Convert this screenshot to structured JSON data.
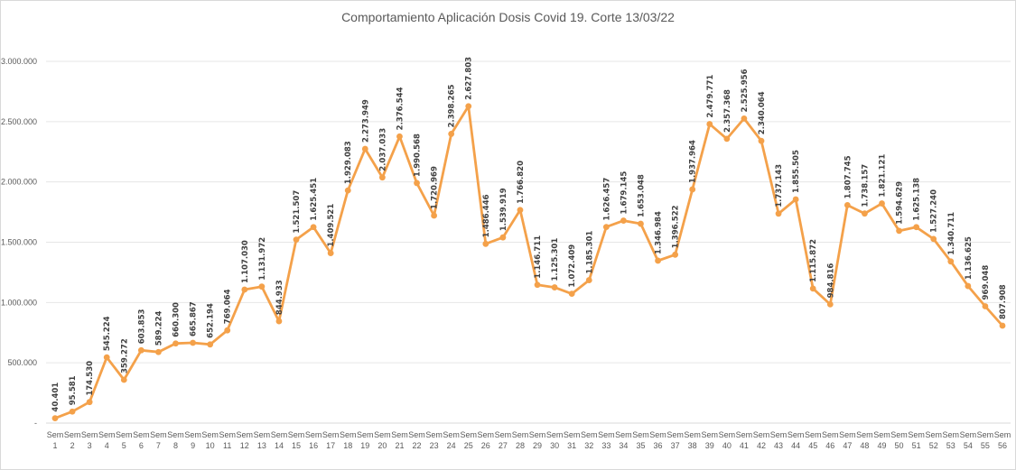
{
  "chart_data": {
    "type": "line",
    "title": "Comportamiento Aplicación Dosis Covid 19. Corte 13/03/22",
    "xlabel": "",
    "ylabel": "",
    "ylim": [
      0,
      3000000
    ],
    "y_ticks": [
      "-",
      "500.000",
      "1.000.000",
      "1.500.000",
      "2.000.000",
      "2.500.000",
      "3.000.000"
    ],
    "grid": true,
    "legend": "none",
    "line_color": "#f4a14a",
    "categories": [
      "Sem 1",
      "Sem 2",
      "Sem 3",
      "Sem 4",
      "Sem 5",
      "Sem 6",
      "Sem 7",
      "Sem 8",
      "Sem 9",
      "Sem 10",
      "Sem 11",
      "Sem 12",
      "Sem 13",
      "Sem 14",
      "Sem 15",
      "Sem 16",
      "Sem 17",
      "Sem 18",
      "Sem 19",
      "Sem 20",
      "Sem 21",
      "Sem 22",
      "Sem 23",
      "Sem 24",
      "Sem 25",
      "Sem 26",
      "Sem 27",
      "Sem 28",
      "Sem 29",
      "Sem 30",
      "Sem 31",
      "Sem 32",
      "Sem 33",
      "Sem 34",
      "Sem 35",
      "Sem 36",
      "Sem 37",
      "Sem 38",
      "Sem 39",
      "Sem 40",
      "Sem 41",
      "Sem 42",
      "Sem 43",
      "Sem 44",
      "Sem 45",
      "Sem 46",
      "Sem 47",
      "Sem 48",
      "Sem 49",
      "Sem 50",
      "Sem 51",
      "Sem 52",
      "Sem 53",
      "Sem 54",
      "Sem 55",
      "Sem 56"
    ],
    "values": [
      40401,
      95581,
      174530,
      545224,
      359272,
      603853,
      589224,
      660300,
      665867,
      652194,
      769064,
      1107030,
      1131972,
      844933,
      1521507,
      1625451,
      1409521,
      1929083,
      2273949,
      2037033,
      2376544,
      1990568,
      1720969,
      2398265,
      2627803,
      1486446,
      1539919,
      1766820,
      1146711,
      1125301,
      1072409,
      1185301,
      1626457,
      1679145,
      1653048,
      1346984,
      1396522,
      1937964,
      2479771,
      2357368,
      2525956,
      2340064,
      1737143,
      1855505,
      1115872,
      984816,
      1807745,
      1738157,
      1821121,
      1594629,
      1625138,
      1527240,
      1340711,
      1136625,
      969048,
      807908
    ],
    "data_labels": [
      "40.401",
      "95.581",
      "174.530",
      "545.224",
      "359.272",
      "603.853",
      "589.224",
      "660.300",
      "665.867",
      "652.194",
      "769.064",
      "1.107.030",
      "1.131.972",
      "844.933",
      "1.521.507",
      "1.625.451",
      "1.409.521",
      "1.929.083",
      "2.273.949",
      "2.037.033",
      "2.376.544",
      "1.990.568",
      "1.720.969",
      "2.398.265",
      "2.627.803",
      "1.486.446",
      "1.539.919",
      "1.766.820",
      "1.146.711",
      "1.125.301",
      "1.072.409",
      "1.185.301",
      "1.626.457",
      "1.679.145",
      "1.653.048",
      "1.346.984",
      "1.396.522",
      "1.937.964",
      "2.479.771",
      "2.357.368",
      "2.525.956",
      "2.340.064",
      "1.737.143",
      "1.855.505",
      "1.115.872",
      "984.816",
      "1.807.745",
      "1.738.157",
      "1.821.121",
      "1.594.629",
      "1.625.138",
      "1.527.240",
      "1.340.711",
      "1.136.625",
      "969.048",
      "807.908"
    ]
  }
}
